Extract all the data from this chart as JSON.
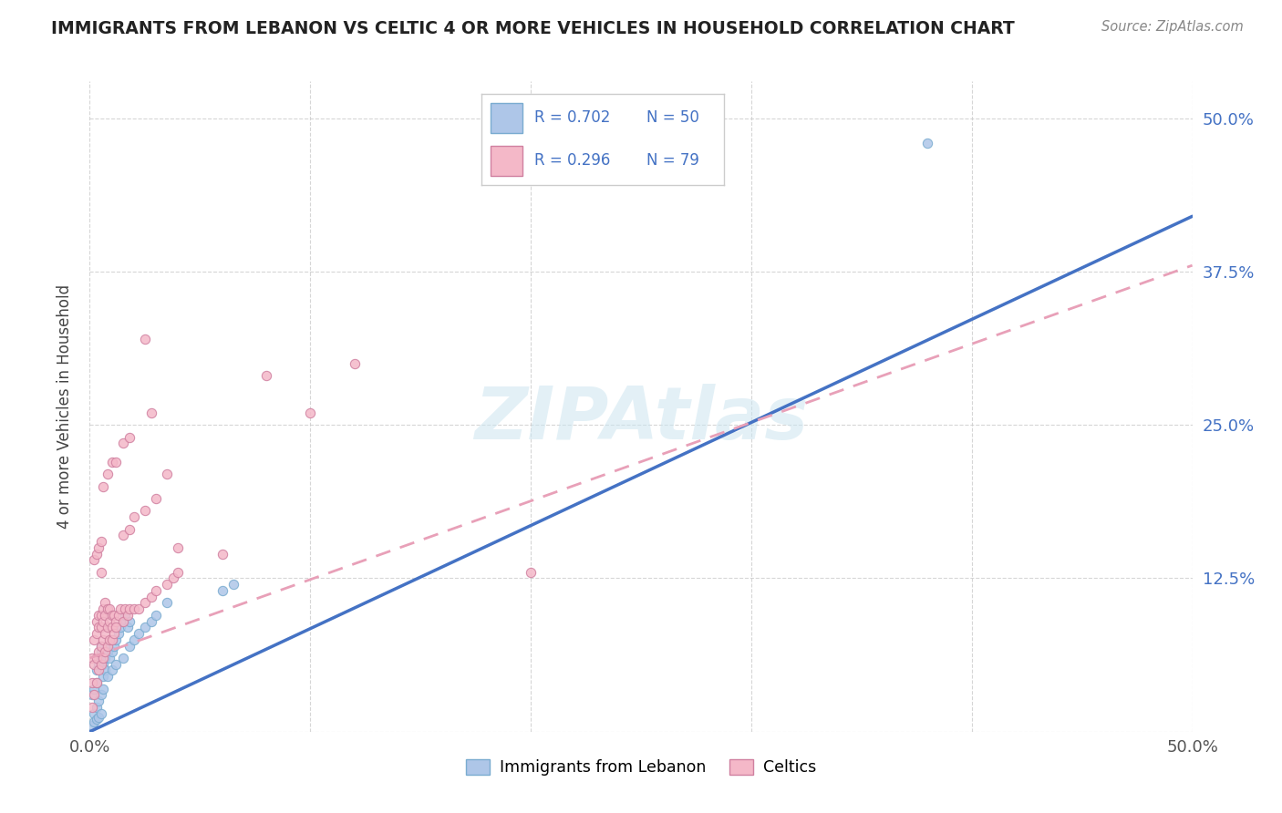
{
  "title": "IMMIGRANTS FROM LEBANON VS CELTIC 4 OR MORE VEHICLES IN HOUSEHOLD CORRELATION CHART",
  "source": "Source: ZipAtlas.com",
  "ylabel": "4 or more Vehicles in Household",
  "xlim": [
    0.0,
    0.5
  ],
  "ylim": [
    0.0,
    0.53
  ],
  "legend_r1": "R = 0.702",
  "legend_n1": "N = 50",
  "legend_r2": "R = 0.296",
  "legend_n2": "N = 79",
  "blue_color": "#aec6e8",
  "pink_color": "#f4b8c8",
  "line_blue": "#4472c4",
  "line_pink_color": "#e8a0b8",
  "watermark": "ZIPAtlas",
  "background_color": "#ffffff",
  "grid_color": "#cccccc",
  "legend_text_color": "#4472c4",
  "blue_x": [
    0.001,
    0.002,
    0.003,
    0.003,
    0.004,
    0.004,
    0.005,
    0.005,
    0.006,
    0.006,
    0.007,
    0.007,
    0.008,
    0.008,
    0.009,
    0.01,
    0.01,
    0.011,
    0.012,
    0.013,
    0.014,
    0.015,
    0.016,
    0.017,
    0.018,
    0.002,
    0.003,
    0.004,
    0.005,
    0.006,
    0.008,
    0.01,
    0.012,
    0.001,
    0.002,
    0.003,
    0.004,
    0.005,
    0.015,
    0.018,
    0.02,
    0.022,
    0.025,
    0.028,
    0.03,
    0.035,
    0.06,
    0.065,
    0.38
  ],
  "blue_y": [
    0.03,
    0.035,
    0.04,
    0.05,
    0.055,
    0.06,
    0.065,
    0.07,
    0.055,
    0.045,
    0.05,
    0.06,
    0.065,
    0.07,
    0.06,
    0.065,
    0.075,
    0.07,
    0.075,
    0.08,
    0.085,
    0.09,
    0.095,
    0.085,
    0.09,
    0.015,
    0.02,
    0.025,
    0.03,
    0.035,
    0.045,
    0.05,
    0.055,
    0.005,
    0.008,
    0.01,
    0.012,
    0.015,
    0.06,
    0.07,
    0.075,
    0.08,
    0.085,
    0.09,
    0.095,
    0.105,
    0.115,
    0.12,
    0.48
  ],
  "pink_x": [
    0.001,
    0.001,
    0.002,
    0.002,
    0.003,
    0.003,
    0.003,
    0.004,
    0.004,
    0.004,
    0.005,
    0.005,
    0.005,
    0.006,
    0.006,
    0.006,
    0.007,
    0.007,
    0.007,
    0.008,
    0.008,
    0.009,
    0.009,
    0.01,
    0.01,
    0.011,
    0.012,
    0.013,
    0.014,
    0.015,
    0.016,
    0.017,
    0.018,
    0.001,
    0.002,
    0.003,
    0.004,
    0.005,
    0.006,
    0.007,
    0.008,
    0.009,
    0.01,
    0.011,
    0.012,
    0.02,
    0.022,
    0.025,
    0.028,
    0.03,
    0.035,
    0.038,
    0.04,
    0.002,
    0.003,
    0.004,
    0.005,
    0.015,
    0.018,
    0.02,
    0.025,
    0.03,
    0.035,
    0.006,
    0.008,
    0.01,
    0.012,
    0.015,
    0.018,
    0.04,
    0.028,
    0.06,
    0.2,
    0.005,
    0.08,
    0.1,
    0.12,
    0.025
  ],
  "pink_y": [
    0.04,
    0.06,
    0.055,
    0.075,
    0.06,
    0.08,
    0.09,
    0.065,
    0.085,
    0.095,
    0.07,
    0.085,
    0.095,
    0.075,
    0.09,
    0.1,
    0.08,
    0.095,
    0.105,
    0.085,
    0.1,
    0.09,
    0.1,
    0.085,
    0.095,
    0.095,
    0.09,
    0.095,
    0.1,
    0.09,
    0.1,
    0.095,
    0.1,
    0.02,
    0.03,
    0.04,
    0.05,
    0.055,
    0.06,
    0.065,
    0.07,
    0.075,
    0.075,
    0.08,
    0.085,
    0.1,
    0.1,
    0.105,
    0.11,
    0.115,
    0.12,
    0.125,
    0.13,
    0.14,
    0.145,
    0.15,
    0.155,
    0.16,
    0.165,
    0.175,
    0.18,
    0.19,
    0.21,
    0.2,
    0.21,
    0.22,
    0.22,
    0.235,
    0.24,
    0.15,
    0.26,
    0.145,
    0.13,
    0.13,
    0.29,
    0.26,
    0.3,
    0.32
  ],
  "blue_line_x0": 0.0,
  "blue_line_y0": 0.0,
  "blue_line_x1": 0.5,
  "blue_line_y1": 0.42,
  "pink_line_x0": 0.0,
  "pink_line_y0": 0.06,
  "pink_line_x1": 0.5,
  "pink_line_y1": 0.38
}
